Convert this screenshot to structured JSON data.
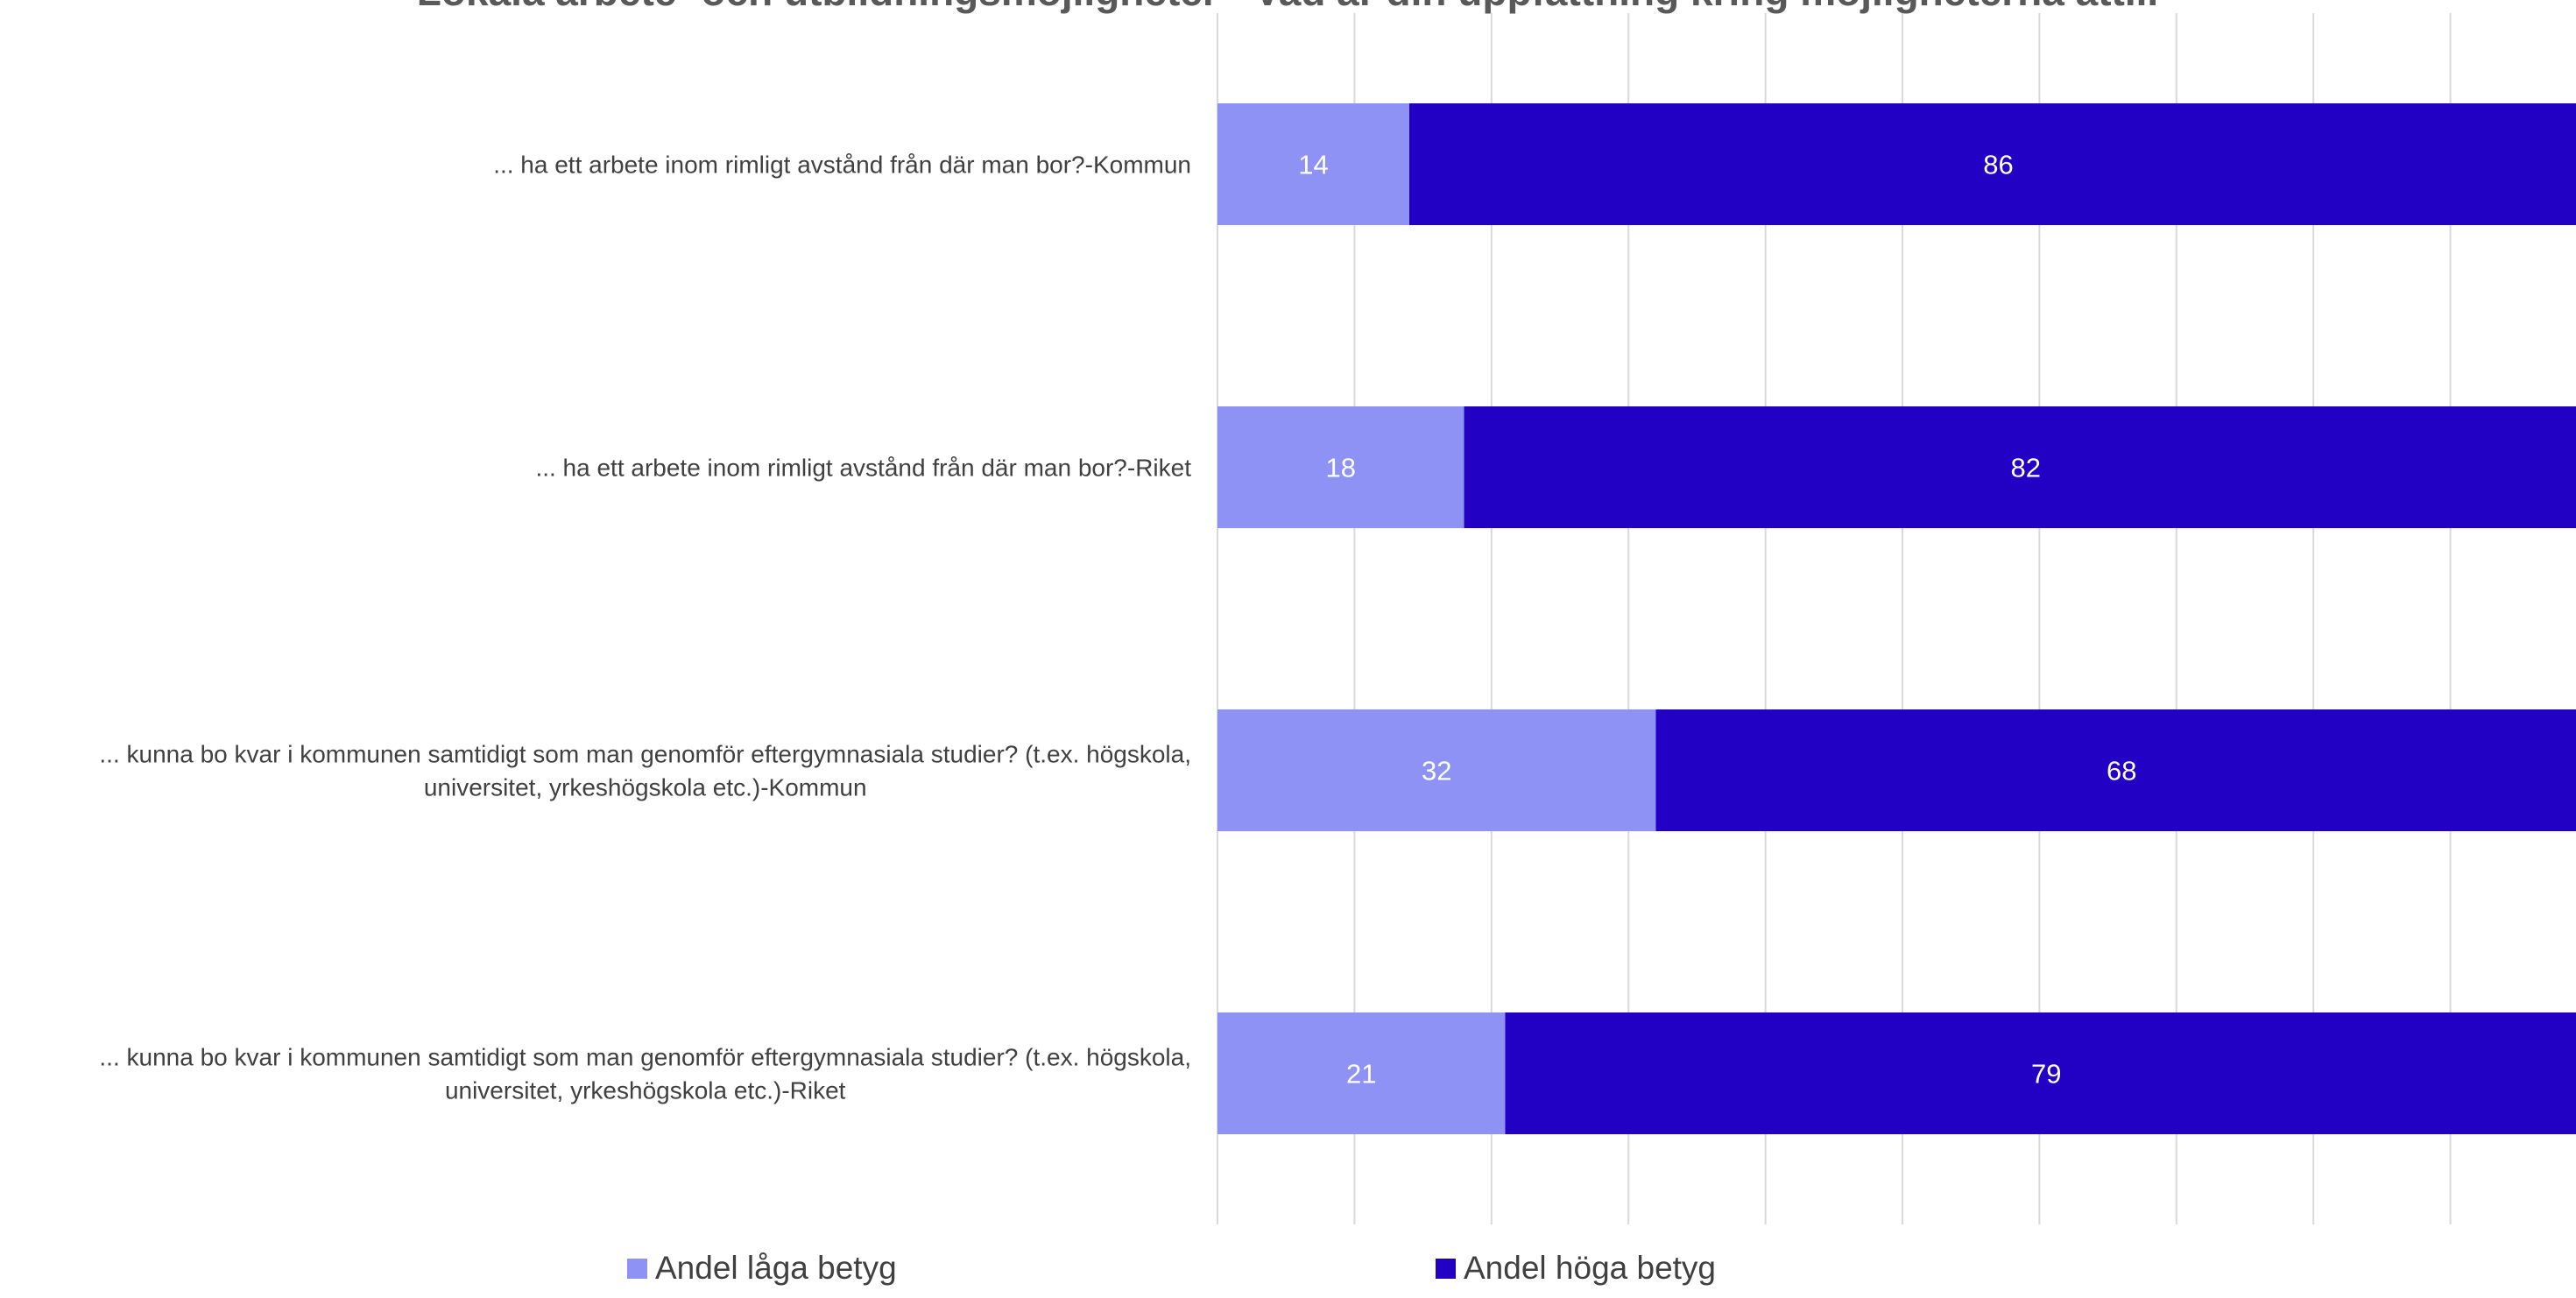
{
  "chart_data": {
    "type": "bar",
    "orientation": "horizontal",
    "stacked": true,
    "title": "Lokala arbete- och utbildningsmöjligheter - Vad är din uppfattning kring möjligheterna att...",
    "categories": [
      "... ha ett arbete inom rimligt avstånd från där man bor?-Kommun",
      "... ha ett arbete inom rimligt avstånd från där man bor?-Riket",
      "... kunna bo kvar i kommunen samtidigt som man genomför eftergymnasiala studier? (t.ex. högskola, universitet, yrkeshögskola etc.)-Kommun",
      "... kunna bo kvar i kommunen samtidigt som man genomför eftergymnasiala studier? (t.ex. högskola, universitet, yrkeshögskola etc.)-Riket"
    ],
    "category_lines": [
      [
        "... ha ett arbete inom rimligt avstånd från där man bor?-Kommun"
      ],
      [
        "... ha ett arbete inom rimligt avstånd från där man bor?-Riket"
      ],
      [
        "... kunna bo kvar i kommunen samtidigt som man genomför eftergymnasiala studier? (t.ex. högskola,",
        "universitet, yrkeshögskola etc.)-Kommun"
      ],
      [
        "... kunna bo kvar i kommunen samtidigt som man genomför eftergymnasiala studier? (t.ex. högskola,",
        "universitet, yrkeshögskola etc.)-Riket"
      ]
    ],
    "series": [
      {
        "name": "Andel låga betyg",
        "color": "#8f92f5",
        "values": [
          14,
          18,
          32,
          21
        ]
      },
      {
        "name": "Andel höga betyg",
        "color": "#2200c4",
        "values": [
          86,
          82,
          68,
          79
        ]
      }
    ],
    "xlim": [
      0,
      100
    ],
    "grid": true,
    "grid_step": 10,
    "legend_position": "bottom",
    "data_labels": true
  }
}
